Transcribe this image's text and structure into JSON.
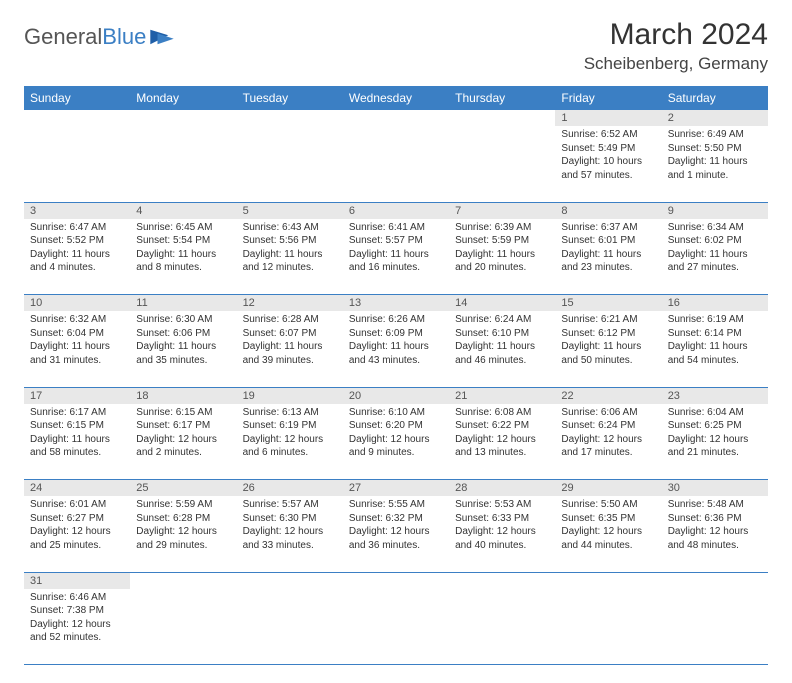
{
  "logo": {
    "text1": "General",
    "text2": "Blue"
  },
  "title": "March 2024",
  "location": "Scheibenberg, Germany",
  "colors": {
    "header_bg": "#3b7fc4",
    "header_fg": "#ffffff",
    "daynum_bg": "#e8e8e8",
    "border": "#3b7fc4"
  },
  "dayHeaders": [
    "Sunday",
    "Monday",
    "Tuesday",
    "Wednesday",
    "Thursday",
    "Friday",
    "Saturday"
  ],
  "weeks": [
    [
      null,
      null,
      null,
      null,
      null,
      {
        "n": "1",
        "sr": "6:52 AM",
        "ss": "5:49 PM",
        "dl": "10 hours and 57 minutes."
      },
      {
        "n": "2",
        "sr": "6:49 AM",
        "ss": "5:50 PM",
        "dl": "11 hours and 1 minute."
      }
    ],
    [
      {
        "n": "3",
        "sr": "6:47 AM",
        "ss": "5:52 PM",
        "dl": "11 hours and 4 minutes."
      },
      {
        "n": "4",
        "sr": "6:45 AM",
        "ss": "5:54 PM",
        "dl": "11 hours and 8 minutes."
      },
      {
        "n": "5",
        "sr": "6:43 AM",
        "ss": "5:56 PM",
        "dl": "11 hours and 12 minutes."
      },
      {
        "n": "6",
        "sr": "6:41 AM",
        "ss": "5:57 PM",
        "dl": "11 hours and 16 minutes."
      },
      {
        "n": "7",
        "sr": "6:39 AM",
        "ss": "5:59 PM",
        "dl": "11 hours and 20 minutes."
      },
      {
        "n": "8",
        "sr": "6:37 AM",
        "ss": "6:01 PM",
        "dl": "11 hours and 23 minutes."
      },
      {
        "n": "9",
        "sr": "6:34 AM",
        "ss": "6:02 PM",
        "dl": "11 hours and 27 minutes."
      }
    ],
    [
      {
        "n": "10",
        "sr": "6:32 AM",
        "ss": "6:04 PM",
        "dl": "11 hours and 31 minutes."
      },
      {
        "n": "11",
        "sr": "6:30 AM",
        "ss": "6:06 PM",
        "dl": "11 hours and 35 minutes."
      },
      {
        "n": "12",
        "sr": "6:28 AM",
        "ss": "6:07 PM",
        "dl": "11 hours and 39 minutes."
      },
      {
        "n": "13",
        "sr": "6:26 AM",
        "ss": "6:09 PM",
        "dl": "11 hours and 43 minutes."
      },
      {
        "n": "14",
        "sr": "6:24 AM",
        "ss": "6:10 PM",
        "dl": "11 hours and 46 minutes."
      },
      {
        "n": "15",
        "sr": "6:21 AM",
        "ss": "6:12 PM",
        "dl": "11 hours and 50 minutes."
      },
      {
        "n": "16",
        "sr": "6:19 AM",
        "ss": "6:14 PM",
        "dl": "11 hours and 54 minutes."
      }
    ],
    [
      {
        "n": "17",
        "sr": "6:17 AM",
        "ss": "6:15 PM",
        "dl": "11 hours and 58 minutes."
      },
      {
        "n": "18",
        "sr": "6:15 AM",
        "ss": "6:17 PM",
        "dl": "12 hours and 2 minutes."
      },
      {
        "n": "19",
        "sr": "6:13 AM",
        "ss": "6:19 PM",
        "dl": "12 hours and 6 minutes."
      },
      {
        "n": "20",
        "sr": "6:10 AM",
        "ss": "6:20 PM",
        "dl": "12 hours and 9 minutes."
      },
      {
        "n": "21",
        "sr": "6:08 AM",
        "ss": "6:22 PM",
        "dl": "12 hours and 13 minutes."
      },
      {
        "n": "22",
        "sr": "6:06 AM",
        "ss": "6:24 PM",
        "dl": "12 hours and 17 minutes."
      },
      {
        "n": "23",
        "sr": "6:04 AM",
        "ss": "6:25 PM",
        "dl": "12 hours and 21 minutes."
      }
    ],
    [
      {
        "n": "24",
        "sr": "6:01 AM",
        "ss": "6:27 PM",
        "dl": "12 hours and 25 minutes."
      },
      {
        "n": "25",
        "sr": "5:59 AM",
        "ss": "6:28 PM",
        "dl": "12 hours and 29 minutes."
      },
      {
        "n": "26",
        "sr": "5:57 AM",
        "ss": "6:30 PM",
        "dl": "12 hours and 33 minutes."
      },
      {
        "n": "27",
        "sr": "5:55 AM",
        "ss": "6:32 PM",
        "dl": "12 hours and 36 minutes."
      },
      {
        "n": "28",
        "sr": "5:53 AM",
        "ss": "6:33 PM",
        "dl": "12 hours and 40 minutes."
      },
      {
        "n": "29",
        "sr": "5:50 AM",
        "ss": "6:35 PM",
        "dl": "12 hours and 44 minutes."
      },
      {
        "n": "30",
        "sr": "5:48 AM",
        "ss": "6:36 PM",
        "dl": "12 hours and 48 minutes."
      }
    ],
    [
      {
        "n": "31",
        "sr": "6:46 AM",
        "ss": "7:38 PM",
        "dl": "12 hours and 52 minutes."
      },
      null,
      null,
      null,
      null,
      null,
      null
    ]
  ],
  "labels": {
    "sunrise": "Sunrise: ",
    "sunset": "Sunset: ",
    "daylight": "Daylight: "
  }
}
